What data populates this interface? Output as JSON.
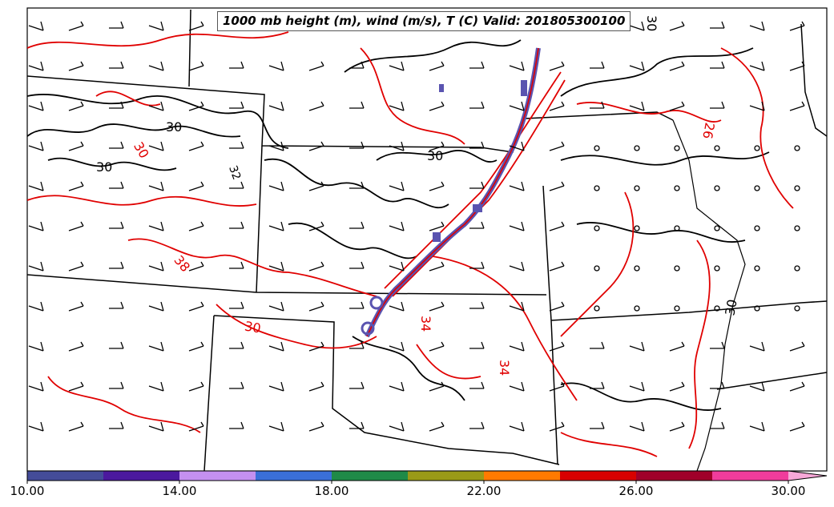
{
  "title": "1000 mb height (m), wind (m/s), T (C) Valid: 201805300100",
  "contour_labels": [
    {
      "text": "30",
      "color": "#000000"
    },
    {
      "text": "30",
      "color": "#000000"
    },
    {
      "text": "30",
      "color": "#000000"
    },
    {
      "text": "30",
      "color": "#000000"
    },
    {
      "text": "30",
      "color": "#000000"
    },
    {
      "text": "30",
      "color": "#cc0000"
    },
    {
      "text": "38",
      "color": "#cc0000"
    },
    {
      "text": "30",
      "color": "#cc0000"
    },
    {
      "text": "34",
      "color": "#cc0000"
    },
    {
      "text": "34",
      "color": "#cc0000"
    },
    {
      "text": "26",
      "color": "#cc0000"
    },
    {
      "text": "32",
      "color": "#cc0000"
    }
  ],
  "colorbar": {
    "segments": [
      "#444c99",
      "#4b199e",
      "#c490f0",
      "#3a6fd8",
      "#1f8a48",
      "#9a9a17",
      "#ff7a00",
      "#d80000",
      "#a0002a",
      "#f03c9c"
    ],
    "extend_color": "#f7a8d8",
    "tick_labels": [
      "10.00",
      "14.00",
      "18.00",
      "22.00",
      "26.00",
      "30.00"
    ]
  },
  "colors": {
    "temperature_contour": "#e00000",
    "height_contour": "#000000",
    "warm_front_band": "#5a54b0"
  }
}
